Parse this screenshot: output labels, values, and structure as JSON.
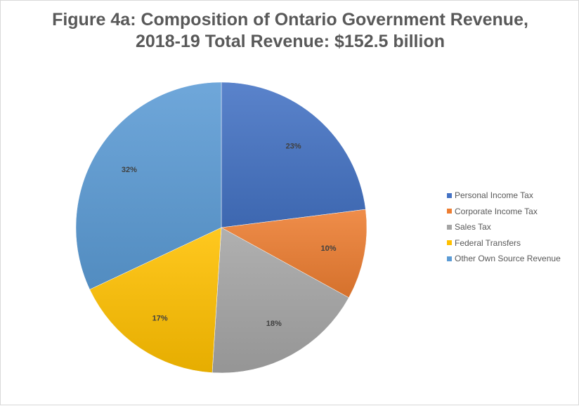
{
  "chart_data": {
    "type": "pie",
    "title": [
      "Figure 4a: Composition of Ontario Government Revenue,",
      "2018-19 Total Revenue: $152.5 billion"
    ],
    "slices": [
      {
        "name": "Personal Income Tax",
        "value": 23,
        "label": "23%",
        "color": "#4472c4"
      },
      {
        "name": "Corporate Income Tax",
        "value": 10,
        "label": "10%",
        "color": "#ed7d31"
      },
      {
        "name": "Sales Tax",
        "value": 18,
        "label": "18%",
        "color": "#a5a5a5"
      },
      {
        "name": "Federal Transfers",
        "value": 17,
        "label": "17%",
        "color": "#ffc000"
      },
      {
        "name": "Other Own Source Revenue",
        "value": 32,
        "label": "32%",
        "color": "#5b9bd5"
      }
    ],
    "legend_position": "right"
  }
}
